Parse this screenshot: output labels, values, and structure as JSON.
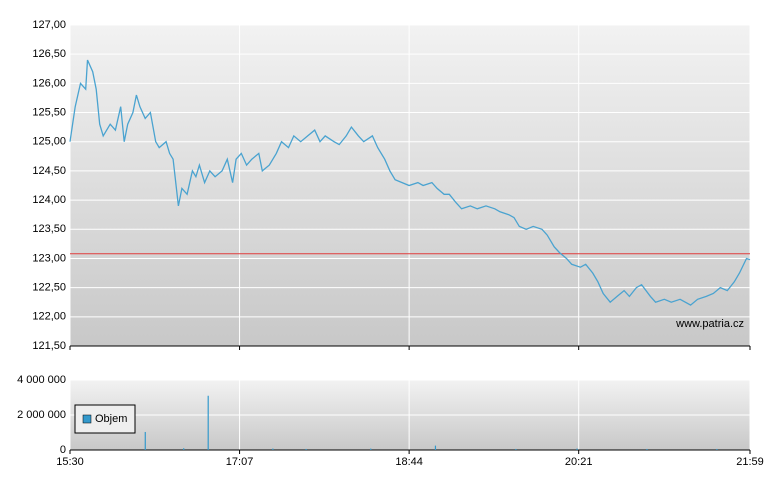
{
  "chart_data": [
    {
      "type": "line",
      "color": "#4aa3d0",
      "grid": true,
      "xlim": [
        0,
        389
      ],
      "ylim": [
        121.5,
        127
      ],
      "yticks": [
        {
          "value": 121.5,
          "label": "121,50"
        },
        {
          "value": 122,
          "label": "122,00"
        },
        {
          "value": 122.5,
          "label": "122,50"
        },
        {
          "value": 123,
          "label": "123,00"
        },
        {
          "value": 123.5,
          "label": "123,50"
        },
        {
          "value": 124,
          "label": "124,00"
        },
        {
          "value": 124.5,
          "label": "124,50"
        },
        {
          "value": 125,
          "label": "125,00"
        },
        {
          "value": 125.5,
          "label": "125,50"
        },
        {
          "value": 126,
          "label": "126,00"
        },
        {
          "value": 126.5,
          "label": "126,50"
        },
        {
          "value": 127,
          "label": "127,00"
        }
      ],
      "reference_line": {
        "value": 123.08,
        "color": "#e03c3c"
      },
      "watermark": "www.patria.cz",
      "x": [
        0,
        3,
        6,
        9,
        10,
        13,
        15,
        17,
        19,
        23,
        26,
        29,
        31,
        33,
        36,
        38,
        40,
        43,
        46,
        49,
        51,
        55,
        57,
        59,
        62,
        64,
        67,
        70,
        72,
        74,
        77,
        80,
        83,
        87,
        90,
        93,
        95,
        98,
        101,
        104,
        108,
        110,
        114,
        118,
        121,
        125,
        128,
        132,
        136,
        140,
        143,
        146,
        151,
        154,
        158,
        161,
        165,
        168,
        173,
        176,
        180,
        183,
        186,
        190,
        194,
        199,
        202,
        207,
        210,
        214,
        217,
        221,
        224,
        229,
        233,
        238,
        243,
        246,
        251,
        254,
        257,
        261,
        265,
        270,
        273,
        277,
        280,
        284,
        287,
        292,
        295,
        299,
        302,
        305,
        309,
        313,
        317,
        320,
        324,
        327,
        332,
        335,
        340,
        344,
        349,
        355,
        359,
        364,
        368,
        372,
        376,
        380,
        383,
        387,
        389
      ],
      "values": [
        125.0,
        125.6,
        126.0,
        125.9,
        126.4,
        126.2,
        125.9,
        125.3,
        125.1,
        125.3,
        125.2,
        125.6,
        125.0,
        125.3,
        125.5,
        125.8,
        125.6,
        125.4,
        125.5,
        125.0,
        124.9,
        125.0,
        124.8,
        124.7,
        123.9,
        124.2,
        124.1,
        124.5,
        124.4,
        124.6,
        124.3,
        124.5,
        124.4,
        124.5,
        124.7,
        124.3,
        124.7,
        124.8,
        124.6,
        124.7,
        124.8,
        124.5,
        124.6,
        124.8,
        125.0,
        124.9,
        125.1,
        125.0,
        125.1,
        125.2,
        125.0,
        125.1,
        125.0,
        124.95,
        125.1,
        125.25,
        125.1,
        125.0,
        125.1,
        124.9,
        124.7,
        124.5,
        124.35,
        124.3,
        124.25,
        124.3,
        124.25,
        124.3,
        124.2,
        124.1,
        124.1,
        123.95,
        123.85,
        123.9,
        123.85,
        123.9,
        123.85,
        123.8,
        123.75,
        123.7,
        123.55,
        123.5,
        123.55,
        123.5,
        123.4,
        123.2,
        123.1,
        123.0,
        122.9,
        122.85,
        122.9,
        122.75,
        122.6,
        122.4,
        122.25,
        122.35,
        122.45,
        122.35,
        122.5,
        122.55,
        122.35,
        122.25,
        122.3,
        122.25,
        122.3,
        122.2,
        122.3,
        122.35,
        122.4,
        122.5,
        122.45,
        122.6,
        122.75,
        123.0,
        122.98
      ]
    },
    {
      "type": "bar",
      "grid": true,
      "legend": "left",
      "xlim": [
        0,
        389
      ],
      "xticks": [
        {
          "value": 0,
          "label": "15:30"
        },
        {
          "value": 97,
          "label": "17:07"
        },
        {
          "value": 194,
          "label": "18:44"
        },
        {
          "value": 291,
          "label": "20:21"
        },
        {
          "value": 389,
          "label": "21:59"
        }
      ],
      "ylim": [
        0,
        4000000
      ],
      "yticks": [
        0,
        {
          "value": 2000000,
          "label": "2 000 000"
        },
        {
          "value": 4000000,
          "label": "4 000 000"
        }
      ],
      "series": [
        {
          "name": "Objem",
          "color": "#3399cc",
          "x": [
            43,
            65,
            79,
            116,
            135,
            172,
            209,
            255,
            290,
            330,
            370
          ],
          "values": [
            1030000,
            100000,
            3100000,
            80000,
            60000,
            80000,
            250000,
            60000,
            80000,
            60000,
            60000
          ]
        }
      ]
    }
  ]
}
